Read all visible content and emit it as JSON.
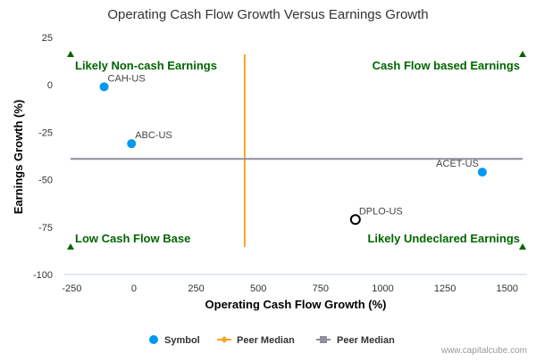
{
  "chart_data": {
    "type": "scatter",
    "title": "Operating Cash Flow Growth Versus Earnings Growth",
    "xlabel": "Operating Cash Flow Growth (%)",
    "ylabel": "Earnings Growth (%)",
    "xlim": [
      -280,
      1580
    ],
    "ylim": [
      -100,
      25
    ],
    "xticks": [
      -250,
      0,
      250,
      500,
      750,
      1000,
      1250,
      1500
    ],
    "yticks": [
      25,
      0,
      -25,
      -50,
      -75,
      -100
    ],
    "xtick_labels": [
      "-250",
      "0",
      "250",
      "500",
      "750",
      "1000",
      "1250",
      "1500"
    ],
    "ytick_labels": [
      "25",
      "0",
      "-25",
      "-50",
      "-75",
      "-100"
    ],
    "grid": false,
    "points": [
      {
        "label": "CAH-US",
        "x": -120,
        "y": -1,
        "kind": "symbol"
      },
      {
        "label": "ABC-US",
        "x": -10,
        "y": -31,
        "kind": "symbol"
      },
      {
        "label": "ACET-US",
        "x": 1400,
        "y": -46,
        "kind": "symbol"
      },
      {
        "label": "DPLO-US",
        "x": 890,
        "y": -71,
        "kind": "highlight"
      }
    ],
    "peer_median_x": 445,
    "peer_median_y": -39,
    "quadrant_labels": {
      "top_left": "Likely Non-cash Earnings",
      "top_right": "Cash Flow based Earnings",
      "bottom_left": "Low Cash Flow Base",
      "bottom_right": "Likely Undeclared Earnings"
    },
    "legend": [
      {
        "label": "Symbol",
        "color": "#0099ee",
        "marker": "circle"
      },
      {
        "label": "Peer Median",
        "color": "#f5a623",
        "marker": "diamond-line"
      },
      {
        "label": "Peer Median",
        "color": "#8e8e9e",
        "marker": "square-line"
      }
    ],
    "legend_position": "bottom",
    "credit": "www.capitalcube.com",
    "colors": {
      "symbol": "#0099ee",
      "highlight_stroke": "#000000",
      "peer_median_x": "#f5a623",
      "peer_median_y": "#8e8e9e",
      "quadrant": "#006600",
      "marker": "#006600"
    }
  }
}
